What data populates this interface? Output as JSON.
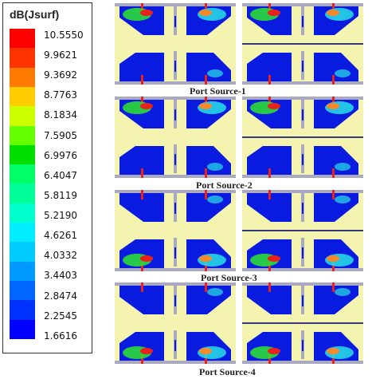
{
  "legend": {
    "title": "dB(Jsurf)",
    "ticks": [
      "10.5550",
      "9.9621",
      "9.3692",
      "8.7763",
      "8.1834",
      "7.5905",
      "6.9976",
      "6.4047",
      "5.8119",
      "5.2190",
      "4.6261",
      "4.0332",
      "3.4403",
      "2.8474",
      "2.2545",
      "1.6616"
    ],
    "colors": [
      "#ff0000",
      "#ff3300",
      "#ff7a00",
      "#ffcc00",
      "#ccff00",
      "#66ff00",
      "#00dd00",
      "#00ff66",
      "#00ff99",
      "#00ffcc",
      "#00eeff",
      "#00ccff",
      "#0099ff",
      "#0066ff",
      "#0033ff",
      "#0000ff"
    ]
  },
  "sources": [
    {
      "label": "Port Source-1"
    },
    {
      "label": "Port Source-2"
    },
    {
      "label": "Port Source-3"
    },
    {
      "label": "Port Source-4"
    }
  ],
  "colors": {
    "substrate": "#f4f3b0",
    "patch": "#0a1be0",
    "strip": "#a9a9c2",
    "feed": "#e8221a",
    "hot_green": "#2ee62e",
    "hot_cyan": "#27e0e6",
    "hot_orange": "#f48a2a"
  }
}
